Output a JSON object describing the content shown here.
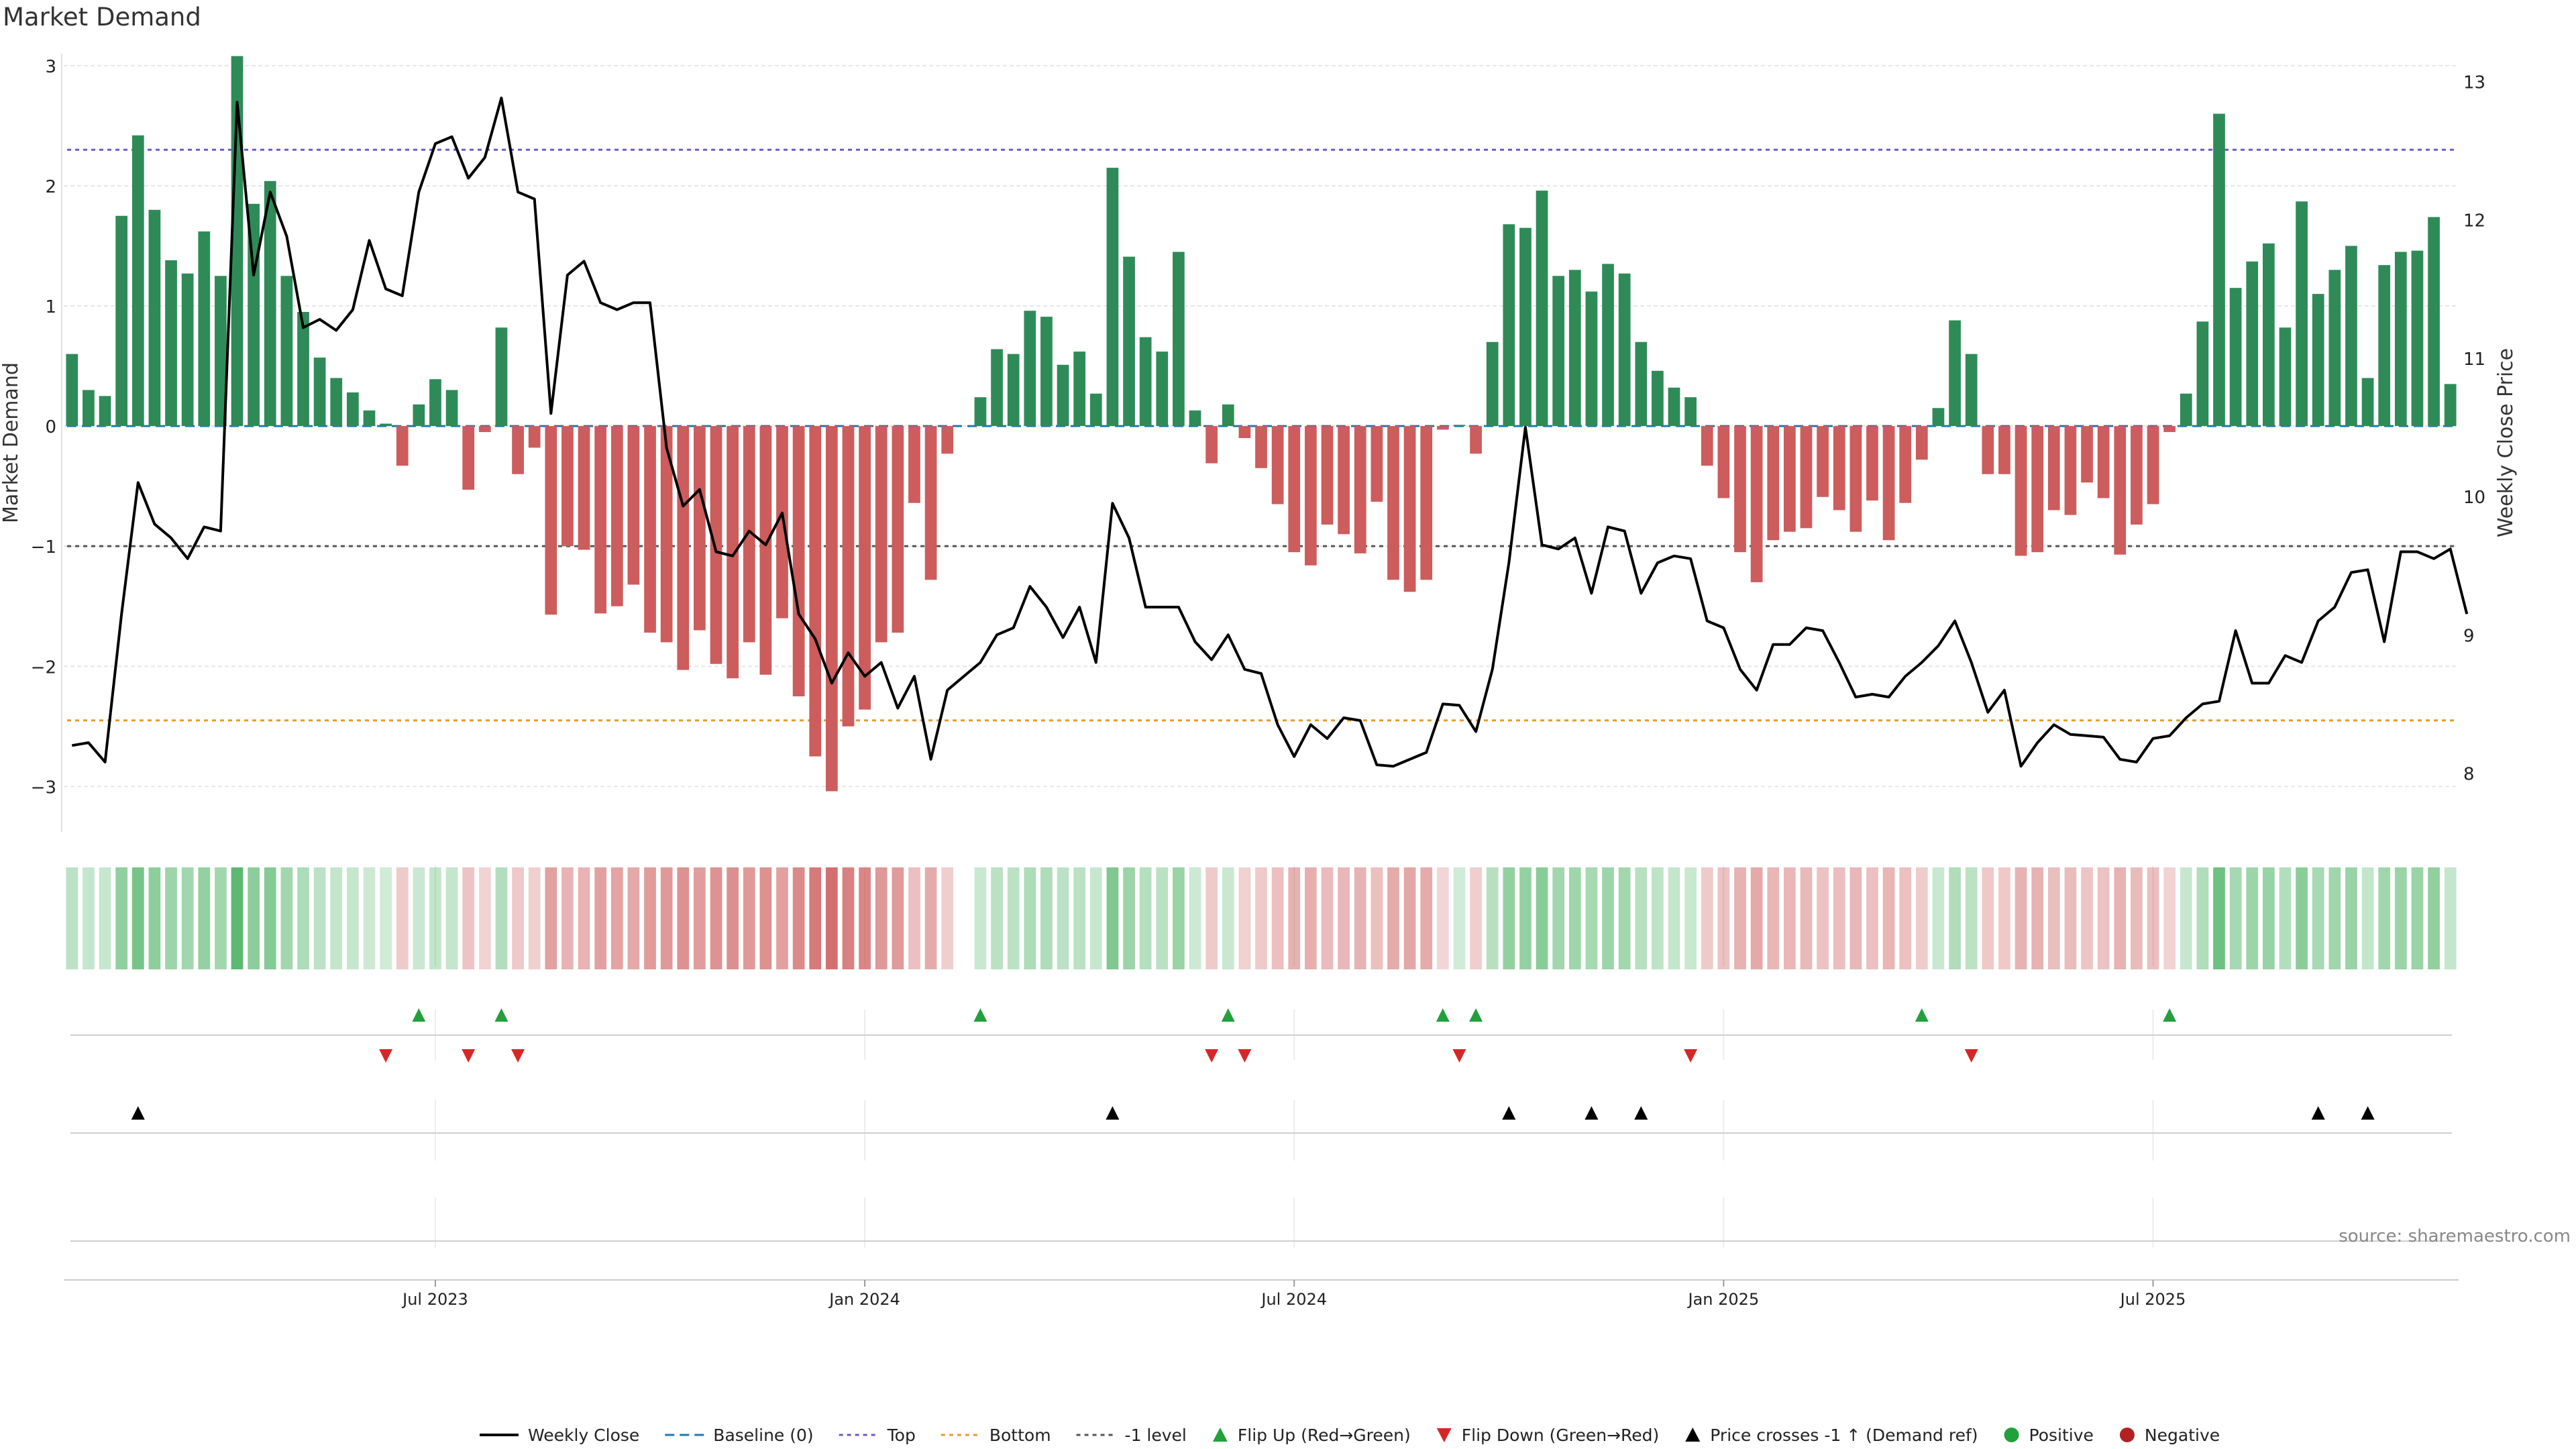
{
  "title": "Market Demand",
  "source": "source: sharemaestro.com",
  "colors": {
    "green": "#2e8b57",
    "red": "#cd5c5c",
    "price": "#000000",
    "baseline": "#1f77b4",
    "top": "#6a5acd",
    "bottom": "#e69a2e",
    "minus1": "#555555",
    "flipUp": "#22a03c",
    "flipDown": "#d62728",
    "cross": "#000000",
    "positive": "#22a03c",
    "negative": "#b22222"
  },
  "chart_data": {
    "type": "bar",
    "y_left": {
      "label": "Market Demand",
      "ticks": [
        -3,
        -2,
        -1,
        0,
        1,
        2,
        3
      ],
      "range": [
        -3.35,
        3.1
      ]
    },
    "y_right": {
      "label": "Weekly Close Price",
      "ticks": [
        8,
        9,
        10,
        11,
        12,
        13
      ],
      "range": [
        7.6,
        13.2
      ]
    },
    "x_ticks": [
      {
        "label": "Jul 2023",
        "week": 22
      },
      {
        "label": "Jan 2024",
        "week": 48
      },
      {
        "label": "Jul 2024",
        "week": 74
      },
      {
        "label": "Jan 2025",
        "week": 100
      },
      {
        "label": "Jul 2025",
        "week": 126
      }
    ],
    "levels": {
      "baseline": 0,
      "top": 2.3,
      "bottom": -2.45,
      "minus1": -1
    },
    "demand": [
      0.6,
      0.3,
      0.25,
      1.75,
      2.42,
      1.8,
      1.38,
      1.27,
      1.62,
      1.25,
      3.08,
      1.85,
      2.04,
      1.25,
      0.95,
      0.57,
      0.4,
      0.28,
      0.13,
      0.02,
      -0.33,
      0.18,
      0.39,
      0.3,
      -0.53,
      -0.05,
      0.82,
      -0.4,
      -0.18,
      -1.57,
      -1.0,
      -1.03,
      -1.56,
      -1.5,
      -1.32,
      -1.72,
      -1.8,
      -2.03,
      -1.7,
      -1.98,
      -2.1,
      -1.8,
      -2.07,
      -1.6,
      -2.25,
      -2.75,
      -3.04,
      -2.5,
      -2.36,
      -1.8,
      -1.72,
      -0.64,
      -1.28,
      -0.23,
      0,
      0.24,
      0.64,
      0.6,
      0.96,
      0.91,
      0.51,
      0.62,
      0.27,
      2.15,
      1.41,
      0.74,
      0.62,
      1.45,
      0.13,
      -0.31,
      0.18,
      -0.1,
      -0.35,
      -0.65,
      -1.05,
      -1.16,
      -0.82,
      -0.9,
      -1.06,
      -0.63,
      -1.28,
      -1.38,
      -1.28,
      -0.03,
      0.01,
      -0.23,
      0.7,
      1.68,
      1.65,
      1.96,
      1.25,
      1.3,
      1.12,
      1.35,
      1.27,
      0.7,
      0.46,
      0.32,
      0.24,
      -0.33,
      -0.6,
      -1.05,
      -1.3,
      -0.95,
      -0.88,
      -0.85,
      -0.59,
      -0.7,
      -0.88,
      -0.62,
      -0.95,
      -0.64,
      -0.28,
      0.15,
      0.88,
      0.6,
      -0.4,
      -0.4,
      -1.08,
      -1.05,
      -0.7,
      -0.74,
      -0.47,
      -0.6,
      -1.07,
      -0.82,
      -0.65,
      -0.05,
      0.27,
      0.87,
      2.6,
      1.15,
      1.37,
      1.52,
      0.82,
      1.87,
      1.1,
      1.3,
      1.5,
      0.4,
      1.34,
      1.45,
      1.46,
      1.74,
      0.35
    ],
    "price": [
      8.2,
      8.22,
      8.08,
      9.15,
      10.1,
      9.8,
      9.7,
      9.55,
      9.78,
      9.75,
      12.85,
      11.6,
      12.2,
      11.88,
      11.22,
      11.28,
      11.2,
      11.35,
      11.85,
      11.5,
      11.45,
      12.2,
      12.55,
      12.6,
      12.3,
      12.45,
      12.88,
      12.2,
      12.15,
      10.6,
      11.6,
      11.7,
      11.4,
      11.35,
      11.4,
      11.4,
      10.35,
      9.93,
      10.05,
      9.6,
      9.57,
      9.75,
      9.65,
      9.88,
      9.15,
      8.97,
      8.65,
      8.87,
      8.7,
      8.8,
      8.47,
      8.7,
      8.1,
      8.6,
      8.7,
      8.8,
      9.0,
      9.05,
      9.35,
      9.2,
      8.98,
      9.2,
      8.8,
      9.95,
      9.7,
      9.2,
      9.2,
      9.2,
      8.95,
      8.82,
      9.0,
      8.75,
      8.72,
      8.35,
      8.12,
      8.35,
      8.25,
      8.4,
      8.38,
      8.06,
      8.05,
      8.1,
      8.15,
      8.5,
      8.49,
      8.3,
      8.75,
      9.52,
      10.5,
      9.65,
      9.62,
      9.7,
      9.3,
      9.78,
      9.75,
      9.3,
      9.52,
      9.57,
      9.55,
      9.1,
      9.05,
      8.75,
      8.6,
      8.93,
      8.93,
      9.05,
      9.03,
      8.8,
      8.55,
      8.57,
      8.55,
      8.7,
      8.8,
      8.92,
      9.1,
      8.8,
      8.44,
      8.6,
      8.05,
      8.22,
      8.35,
      8.28,
      8.27,
      8.26,
      8.1,
      8.08,
      8.25,
      8.27,
      8.4,
      8.5,
      8.52,
      9.03,
      8.65,
      8.65,
      8.85,
      8.8,
      9.1,
      9.2,
      9.45,
      9.47,
      8.95,
      9.6,
      9.6,
      9.55,
      9.62,
      9.15
    ],
    "flip_up": [
      21,
      26,
      55,
      70,
      83,
      85,
      112,
      127
    ],
    "flip_down": [
      19,
      24,
      27,
      69,
      71,
      84,
      98,
      115
    ],
    "price_cross": [
      4,
      63,
      87,
      92,
      95,
      136,
      139
    ],
    "legend": [
      {
        "label": "Weekly Close",
        "kind": "line"
      },
      {
        "label": "Baseline (0)",
        "kind": "baseline"
      },
      {
        "label": "Top",
        "kind": "top"
      },
      {
        "label": "Bottom",
        "kind": "bottom"
      },
      {
        "label": "-1 level",
        "kind": "minus1"
      },
      {
        "label": "Flip Up (Red→Green)",
        "kind": "flipUp"
      },
      {
        "label": "Flip Down (Green→Red)",
        "kind": "flipDown"
      },
      {
        "label": "Price crosses -1 ↑ (Demand ref)",
        "kind": "cross"
      },
      {
        "label": "Positive",
        "kind": "positive"
      },
      {
        "label": "Negative",
        "kind": "negative"
      }
    ]
  }
}
